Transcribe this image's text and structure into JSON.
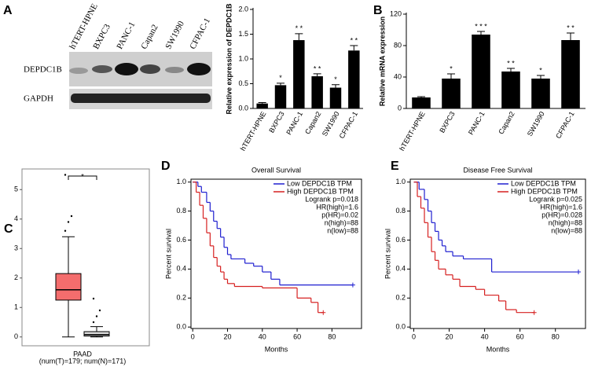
{
  "blot": {
    "panel": "A",
    "lanes": [
      "hTERT-HPNE",
      "BXPC3",
      "PANC-1",
      "Capan2",
      "SW1990",
      "CFPAC-1"
    ],
    "rows": [
      "DEPDC1B",
      "GAPDH"
    ]
  },
  "chart_data": [
    {
      "type": "bar",
      "ylabel": "Relative expression of DEPDC1B",
      "categories": [
        "hTERT-HPNE",
        "BXPC3",
        "PANC-1",
        "Capan2",
        "SW1990",
        "CFPAC-1"
      ],
      "values": [
        0.1,
        0.47,
        1.38,
        0.65,
        0.42,
        1.17
      ],
      "errors": [
        0.02,
        0.04,
        0.13,
        0.05,
        0.06,
        0.1
      ],
      "significance": [
        null,
        "*",
        "* *",
        "* *",
        "*",
        "* *"
      ],
      "color": "#000000",
      "ylim": [
        0,
        2
      ],
      "yticks": [
        {
          "value": 0,
          "label": "0.0"
        },
        {
          "value": 0.5,
          "label": "0.5"
        },
        {
          "value": 1,
          "label": "1.0"
        },
        {
          "value": 1.5,
          "label": "1.5"
        },
        {
          "value": 2,
          "label": "2.0"
        }
      ]
    },
    {
      "type": "bar",
      "panel": "B",
      "ylabel": "Relative mRNA  expression",
      "categories": [
        "hTERT-HPNE",
        "BXPC3",
        "PANC-1",
        "Capan2",
        "SW1990",
        "CFPAC-1"
      ],
      "values": [
        14,
        38,
        94,
        47,
        38,
        87
      ],
      "errors": [
        1,
        6,
        4,
        4,
        4,
        9
      ],
      "significance": [
        null,
        "*",
        "* * *",
        "* *",
        "*",
        "* *"
      ],
      "color": "#000000",
      "ylim": [
        0,
        120
      ],
      "yticks": [
        0,
        40,
        80,
        120
      ]
    },
    {
      "type": "box",
      "panel": "C",
      "categories": [
        "PAAD"
      ],
      "subtitle": "(num(T)=179; num(N)=171)",
      "significance": "*",
      "ylim": [
        -0.3,
        5.7
      ],
      "yticks": [
        0,
        1,
        2,
        3,
        4,
        5
      ],
      "boxes": [
        {
          "color": "#f46d6d",
          "min": 0,
          "q1": 1.25,
          "median": 1.6,
          "q3": 2.15,
          "max": 3.4,
          "outliers": [
            3.6,
            3.9,
            4.1,
            5.5
          ]
        },
        {
          "color": "#dddddd",
          "min": 0,
          "q1": 0.03,
          "median": 0.08,
          "q3": 0.18,
          "max": 0.35,
          "outliers": [
            0.5,
            0.7,
            0.9,
            1.3
          ]
        }
      ]
    },
    {
      "type": "km",
      "panel": "D",
      "title": "Overall Survival",
      "xlabel": "Months",
      "ylabel": "Percent survival",
      "xlim": [
        -1,
        97
      ],
      "ylim": [
        -0.01,
        1.02
      ],
      "xticks": [
        0,
        20,
        40,
        60,
        80
      ],
      "yticks": [
        {
          "value": 0,
          "label": "0.0"
        },
        {
          "value": 0.2,
          "label": "0.2"
        },
        {
          "value": 0.4,
          "label": "0.4"
        },
        {
          "value": 0.6,
          "label": "0.6"
        },
        {
          "value": 0.8,
          "label": "0.8"
        },
        {
          "value": 1,
          "label": "1.0"
        }
      ],
      "annotations": [
        "Logrank p=0.018",
        "HR(high)=1.6",
        "p(HR)=0.02",
        "n(high)=88",
        "n(low)=88"
      ],
      "series": [
        {
          "name": "Low DEPDC1B TPM",
          "color": "#1f1fd0",
          "x": [
            0,
            3,
            5,
            8,
            10,
            12,
            14,
            16,
            18,
            20,
            22,
            30,
            35,
            40,
            45,
            50,
            92
          ],
          "values": [
            1,
            0.97,
            0.93,
            0.86,
            0.8,
            0.73,
            0.68,
            0.62,
            0.55,
            0.5,
            0.47,
            0.44,
            0.42,
            0.38,
            0.33,
            0.29,
            0.29
          ]
        },
        {
          "name": "High DEPDC1B TPM",
          "color": "#d62020",
          "x": [
            0,
            2,
            4,
            6,
            8,
            10,
            12,
            14,
            16,
            18,
            20,
            24,
            40,
            60,
            68,
            72,
            75
          ],
          "values": [
            1,
            0.93,
            0.84,
            0.75,
            0.65,
            0.56,
            0.48,
            0.42,
            0.38,
            0.33,
            0.3,
            0.28,
            0.27,
            0.2,
            0.17,
            0.1,
            0.1
          ]
        }
      ]
    },
    {
      "type": "km",
      "panel": "E",
      "title": "Disease Free Survival",
      "xlabel": "Months",
      "ylabel": "Percent survival",
      "xlim": [
        -2,
        97
      ],
      "ylim": [
        -0.01,
        1.02
      ],
      "xticks": [
        0,
        20,
        40,
        60,
        80
      ],
      "yticks": [
        {
          "value": 0,
          "label": "0.0"
        },
        {
          "value": 0.2,
          "label": "0.2"
        },
        {
          "value": 0.4,
          "label": "0.4"
        },
        {
          "value": 0.6,
          "label": "0.6"
        },
        {
          "value": 0.8,
          "label": "0.8"
        },
        {
          "value": 1,
          "label": "1.0"
        }
      ],
      "annotations": [
        "Logrank p=0.025",
        "HR(high)=1.6",
        "p(HR)=0.028",
        "n(high)=88",
        "n(low)=88"
      ],
      "series": [
        {
          "name": "Low DEPDC1B TPM",
          "color": "#1f1fd0",
          "x": [
            0,
            3,
            6,
            8,
            10,
            12,
            14,
            16,
            18,
            22,
            28,
            44,
            93
          ],
          "values": [
            1,
            0.95,
            0.88,
            0.8,
            0.72,
            0.66,
            0.6,
            0.56,
            0.52,
            0.49,
            0.47,
            0.38,
            0.38
          ]
        },
        {
          "name": "High DEPDC1B TPM",
          "color": "#d62020",
          "x": [
            0,
            2,
            4,
            6,
            8,
            10,
            12,
            14,
            18,
            22,
            26,
            35,
            40,
            48,
            52,
            58,
            68
          ],
          "values": [
            1,
            0.9,
            0.82,
            0.72,
            0.62,
            0.52,
            0.46,
            0.4,
            0.36,
            0.33,
            0.28,
            0.26,
            0.22,
            0.18,
            0.12,
            0.1,
            0.1
          ]
        }
      ]
    }
  ]
}
